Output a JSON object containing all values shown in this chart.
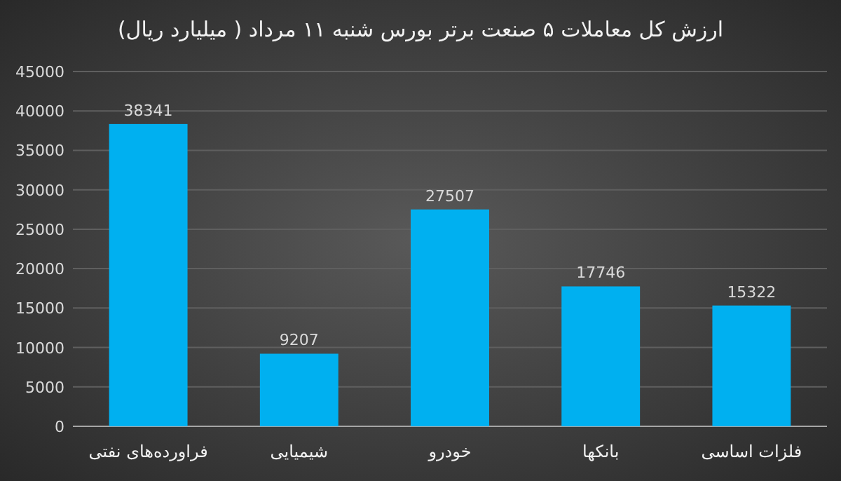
{
  "chart_data": {
    "type": "bar",
    "title": "ارزش کل معاملات ۵ صنعت برتر بورس شنبه ۱۱ مرداد ( میلیارد ریال)",
    "categories": [
      "فراورده‌های نفتی",
      "شیمیایی",
      "خودرو",
      "بانکها",
      "فلزات اساسی"
    ],
    "values": [
      38341,
      9207,
      27507,
      17746,
      15322
    ],
    "color": "#00b0f0",
    "ylim": [
      0,
      45000
    ],
    "yticks": [
      0,
      5000,
      10000,
      15000,
      20000,
      25000,
      30000,
      35000,
      40000,
      45000
    ],
    "grid": "y",
    "data_labels": true
  }
}
